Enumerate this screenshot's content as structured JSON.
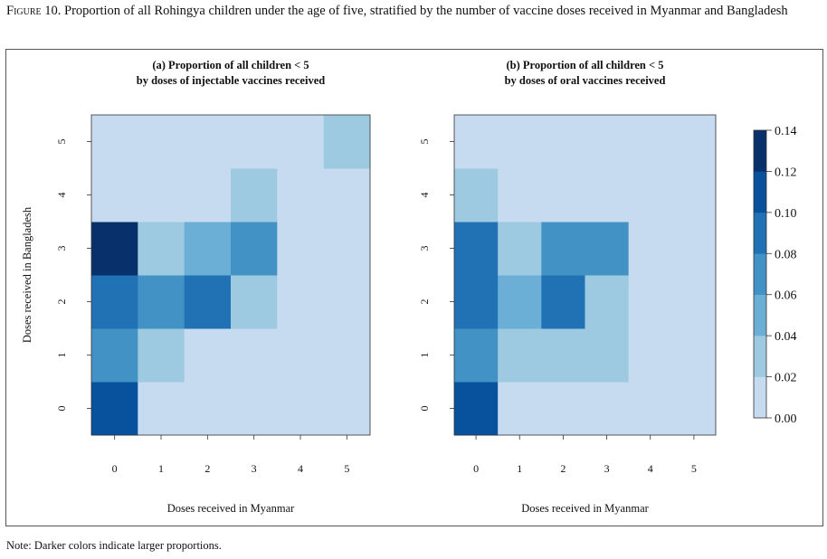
{
  "figure": {
    "caption_lead": "Figure 10.",
    "caption_rest": " Proportion of all Rohingya children under the age of five, stratified by the number of vaccine doses received in Myanmar and Bangladesh",
    "note": "Note: Darker colors indicate larger proportions."
  },
  "colors": {
    "scale": [
      "#c6dbef",
      "#9ecae1",
      "#6baed6",
      "#4292c6",
      "#2171b5",
      "#08519c",
      "#08306b"
    ],
    "frame": "#555555"
  },
  "chart_data": [
    {
      "type": "heatmap",
      "title_line1": "(a) Proportion of all children < 5",
      "title_line2": "by doses of injectable vaccines received",
      "xlabel": "Doses received in Myanmar",
      "ylabel": "Doses received in Bangladesh",
      "x": [
        0,
        1,
        2,
        3,
        4,
        5
      ],
      "y": [
        0,
        1,
        2,
        3,
        4,
        5
      ],
      "x_tick_labels": [
        "0",
        "1",
        "2",
        "3",
        "4",
        "5"
      ],
      "y_tick_labels": [
        "0",
        "1",
        "2",
        "3",
        "4",
        "5"
      ],
      "values": [
        [
          0.11,
          0.01,
          0.01,
          0.01,
          0.01,
          0.01
        ],
        [
          0.07,
          0.03,
          0.01,
          0.01,
          0.01,
          0.01
        ],
        [
          0.09,
          0.07,
          0.09,
          0.03,
          0.01,
          0.01
        ],
        [
          0.14,
          0.03,
          0.05,
          0.07,
          0.01,
          0.01
        ],
        [
          0.01,
          0.01,
          0.01,
          0.03,
          0.01,
          0.01
        ],
        [
          0.01,
          0.01,
          0.01,
          0.01,
          0.01,
          0.03
        ]
      ],
      "values_note_rows": "rows indexed by Bangladesh doses 0..5, columns by Myanmar doses 0..5",
      "range": [
        0,
        0.14
      ]
    },
    {
      "type": "heatmap",
      "title_line1": "(b) Proportion of all children < 5",
      "title_line2": "by doses of oral vaccines received",
      "xlabel": "Doses received in Myanmar",
      "ylabel": "",
      "x": [
        0,
        1,
        2,
        3,
        4,
        5
      ],
      "y": [
        0,
        1,
        2,
        3,
        4,
        5
      ],
      "x_tick_labels": [
        "0",
        "1",
        "2",
        "3",
        "4",
        "5"
      ],
      "y_tick_labels": [
        "0",
        "1",
        "2",
        "3",
        "4",
        "5"
      ],
      "values": [
        [
          0.11,
          0.01,
          0.01,
          0.01,
          0.01,
          0.01
        ],
        [
          0.07,
          0.03,
          0.03,
          0.03,
          0.01,
          0.01
        ],
        [
          0.09,
          0.05,
          0.09,
          0.03,
          0.01,
          0.01
        ],
        [
          0.09,
          0.03,
          0.07,
          0.07,
          0.01,
          0.01
        ],
        [
          0.03,
          0.01,
          0.01,
          0.01,
          0.01,
          0.01
        ],
        [
          0.01,
          0.01,
          0.01,
          0.01,
          0.01,
          0.01
        ]
      ],
      "range": [
        0,
        0.14
      ]
    }
  ],
  "legend": {
    "ticks": [
      0.14,
      0.12,
      0.1,
      0.08,
      0.06,
      0.04,
      0.02,
      0.0
    ],
    "tick_labels": [
      "0.14",
      "0.12",
      "0.10",
      "0.08",
      "0.06",
      "0.04",
      "0.02",
      "0.00"
    ],
    "placement": "right"
  }
}
